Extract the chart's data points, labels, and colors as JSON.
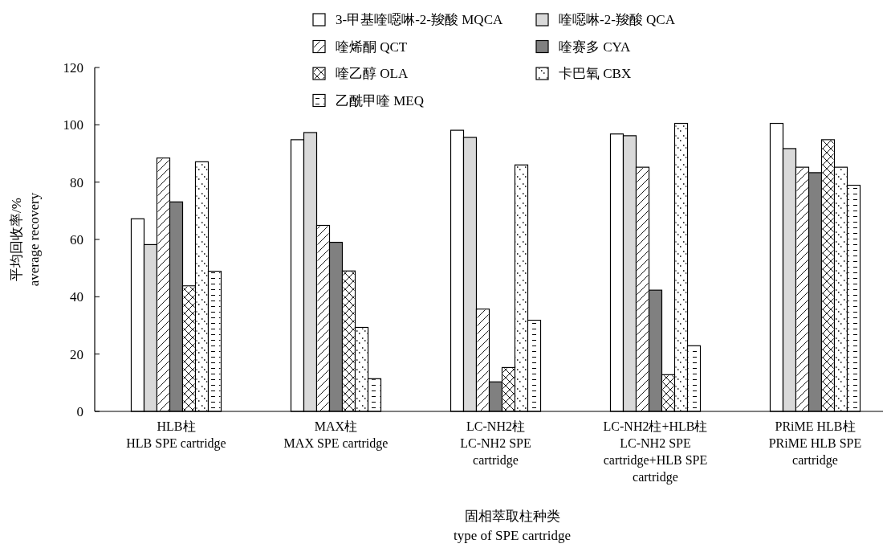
{
  "chart_data": {
    "type": "bar",
    "xlabel": "固相萃取柱种类\ntype of SPE cartridge",
    "ylabel": "平均回收率/%\naverage recovery",
    "categories": [
      "HLB柱\nHLB SPE cartridge",
      "MAX柱\nMAX SPE cartridge",
      "LC-NH2柱\nLC-NH2 SPE\ncartridge",
      "LC-NH2柱+HLB柱\nLC-NH2 SPE\ncartridge+HLB SPE\ncartridge",
      "PRiME HLB柱\nPRiME HLB SPE\ncartridge"
    ],
    "ylim": [
      0,
      120
    ],
    "yticks": [
      0,
      20,
      40,
      60,
      80,
      100,
      120
    ],
    "grid": false,
    "legend": "top",
    "series": [
      {
        "name": "3-甲基喹噁啉-2-羧酸 MQCA",
        "color": "#ffffff",
        "values": [
          67.2,
          94.8,
          98.1,
          96.8,
          100.5
        ]
      },
      {
        "name": "喹噁啉-2-羧酸 QCA",
        "color": "#d9d9d9",
        "values": [
          58.2,
          97.3,
          95.6,
          96.2,
          91.7
        ]
      },
      {
        "name": "喹烯酮 QCT",
        "color": "#ffffff",
        "values": [
          88.4,
          64.9,
          35.7,
          85.2,
          85.2
        ]
      },
      {
        "name": "喹赛多 CYA",
        "color": "#808080",
        "values": [
          73.1,
          59.0,
          10.3,
          42.3,
          83.3
        ]
      },
      {
        "name": "喹乙醇 OLA",
        "color": "#ffffff",
        "values": [
          43.8,
          49.0,
          15.3,
          12.8,
          94.8
        ]
      },
      {
        "name": "卡巴氧 CBX",
        "color": "#ffffff",
        "values": [
          87.1,
          29.3,
          86.0,
          100.5,
          85.2
        ]
      },
      {
        "name": "乙酰甲喹 MEQ",
        "color": "#ffffff",
        "values": [
          48.9,
          11.4,
          31.8,
          22.9,
          78.9
        ]
      }
    ]
  }
}
